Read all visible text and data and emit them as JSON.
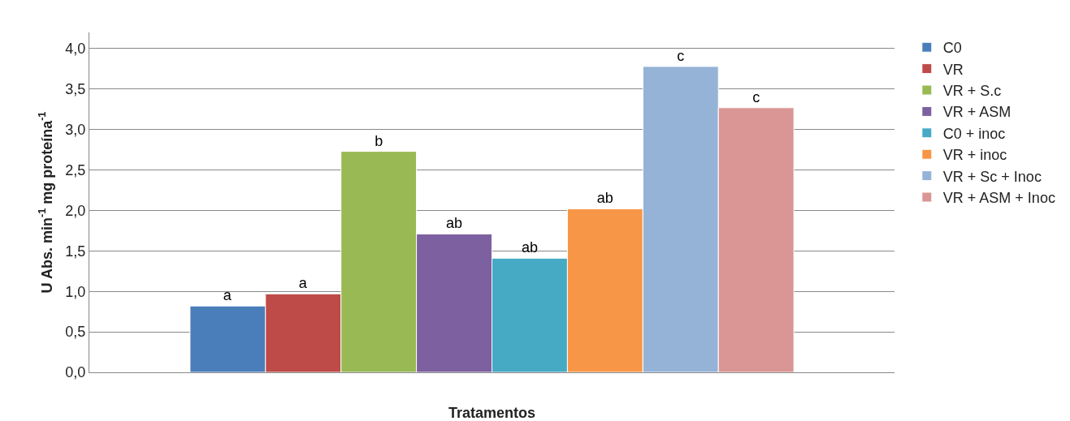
{
  "chart_data": {
    "type": "bar",
    "xlabel": "Tratamentos",
    "ylabel": "U Abs. min$^{-1}$ mg proteína$^{-1}$",
    "categories": [
      null
    ],
    "series": [
      {
        "name": "C0",
        "color": "#4a7ebb",
        "values": [
          0.82
        ],
        "value_labels": [
          "a"
        ]
      },
      {
        "name": "VR",
        "color": "#be4b48",
        "values": [
          0.97
        ],
        "value_labels": [
          "a"
        ]
      },
      {
        "name": "VR + S.c",
        "color": "#98b954",
        "values": [
          2.73
        ],
        "value_labels": [
          "b"
        ]
      },
      {
        "name": "VR + ASM",
        "color": "#7d60a0",
        "values": [
          1.71
        ],
        "value_labels": [
          "ab"
        ]
      },
      {
        "name": "C0 + inoc",
        "color": "#46aac5",
        "values": [
          1.41
        ],
        "value_labels": [
          "ab"
        ]
      },
      {
        "name": "VR + inoc",
        "color": "#f79646",
        "values": [
          2.02
        ],
        "value_labels": [
          "ab"
        ]
      },
      {
        "name": "VR + Sc + Inoc",
        "color": "#95b3d7",
        "values": [
          3.78
        ],
        "value_labels": [
          "c"
        ]
      },
      {
        "name": "VR + ASM + Inoc",
        "color": "#d99694",
        "values": [
          3.27
        ],
        "value_labels": [
          "c"
        ]
      }
    ],
    "ylim": [
      0,
      4.2
    ],
    "yticks": [
      {
        "value": 0,
        "label": "0,0"
      },
      {
        "value": 0.5,
        "label": "0,5"
      },
      {
        "value": 1,
        "label": "1,0"
      },
      {
        "value": 1.5,
        "label": "1,5"
      },
      {
        "value": 2,
        "label": "2,0"
      },
      {
        "value": 2.5,
        "label": "2,5"
      },
      {
        "value": 3,
        "label": "3,0"
      },
      {
        "value": 3.5,
        "label": "3,5"
      },
      {
        "value": 4,
        "label": "4,0"
      }
    ],
    "grid": "y",
    "legend": "right"
  }
}
